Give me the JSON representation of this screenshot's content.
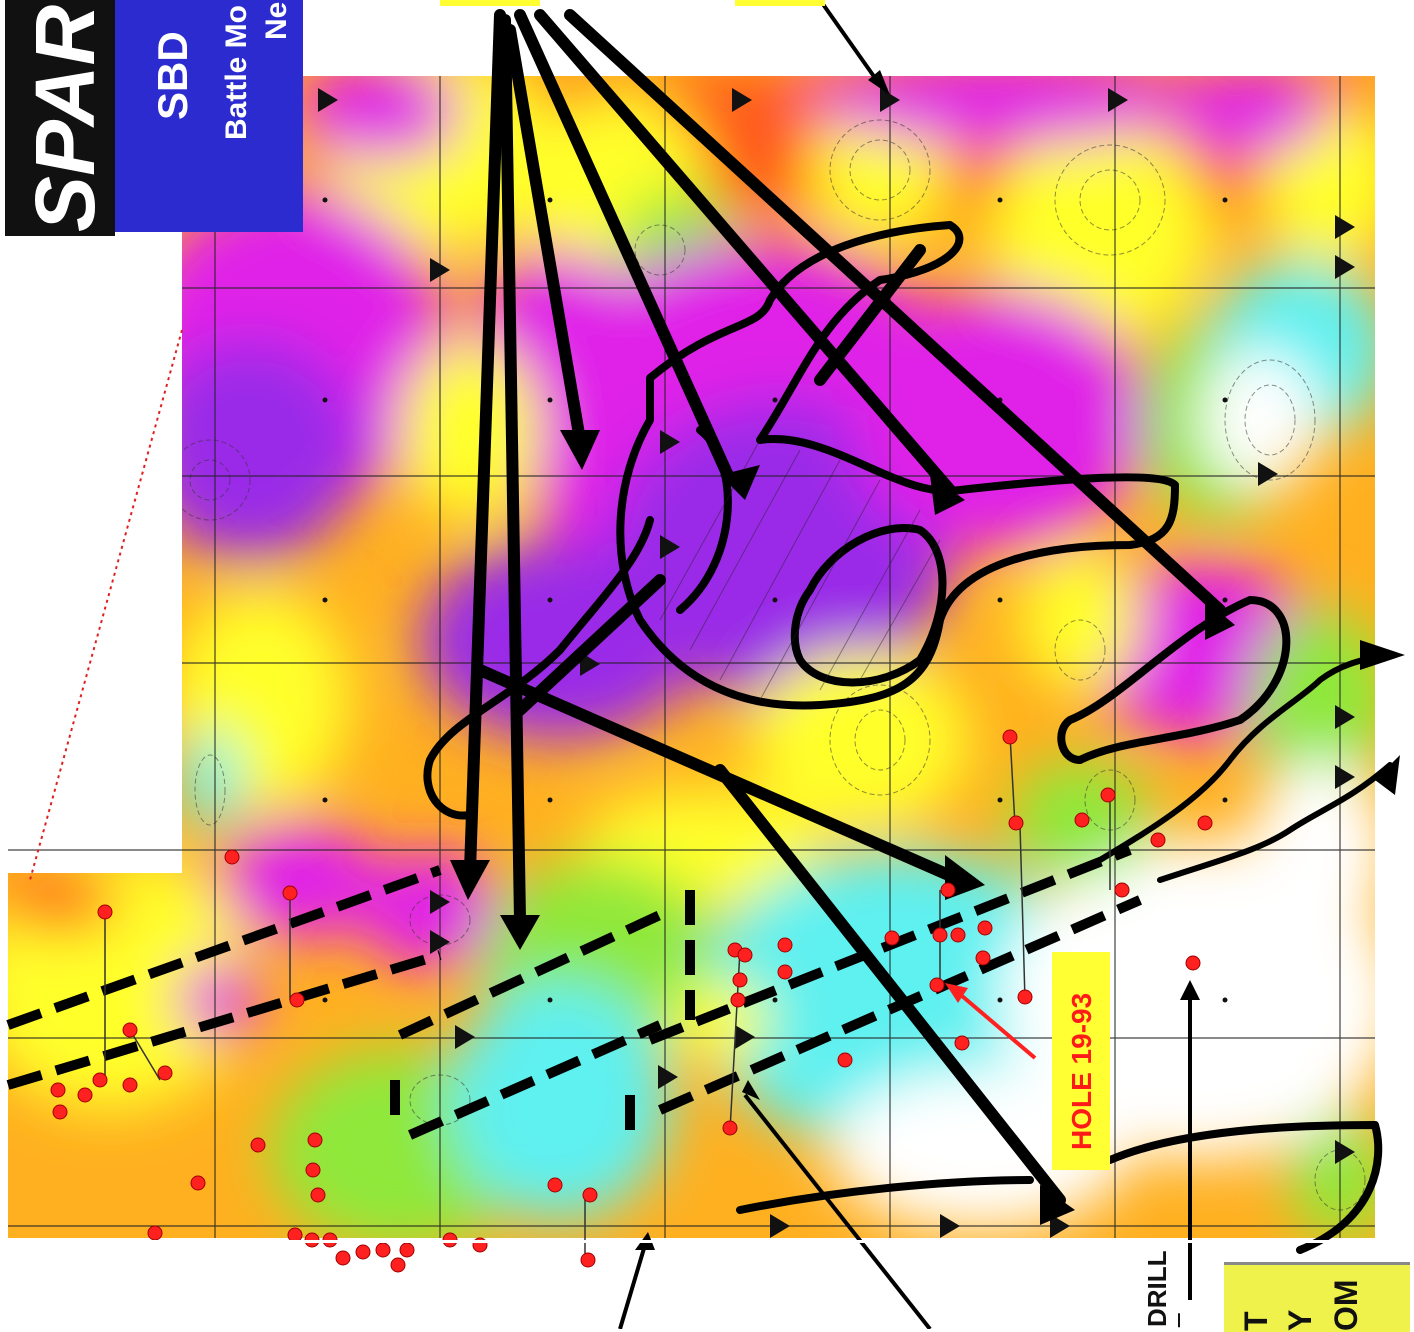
{
  "title": {
    "spar": "SPAR",
    "sbd": "SBD",
    "line1": "Battle Mo",
    "line2": "Ne"
  },
  "hole_label": "HOLE 19-93",
  "drill_label": {
    "line1": "DRILL",
    "line2": "E"
  },
  "legend": {
    "line1": "T",
    "line2": "Y",
    "line3": "OM"
  },
  "colors": {
    "magenta": "#e020e8",
    "purple": "#9a2ce8",
    "red": "#ff2a1a",
    "orange": "#ff8a1a",
    "yellow": "#ffff2a",
    "green": "#8fe83a",
    "cyan": "#5ff0f0",
    "white": "#ffffff",
    "title_blue": "#2b2bd0",
    "hole_box": "#ffff33",
    "drill_hole": "#ff2020"
  }
}
